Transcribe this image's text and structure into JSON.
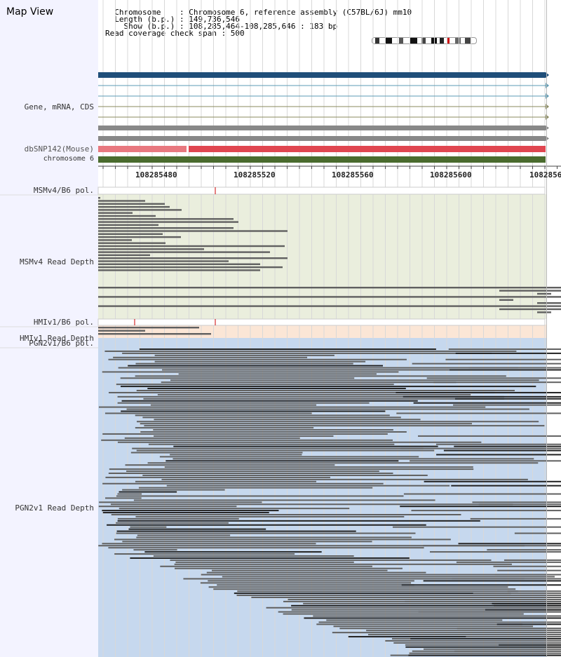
{
  "page_title": "Map View",
  "info": {
    "chromosome_line": "  Chromosome    : Chromosome 6, reference assembly (C57BL/6J) mm10",
    "length_line": "  Length (b.p.) : 149,736,546",
    "show_line": "    Show (b.p.) : 108,285,464-108,285,646 : 183 bp",
    "coverage_line": "Read coverage check span : 500"
  },
  "tracks": {
    "gene": "Gene, mRNA, CDS",
    "dbsnp": "dbSNP142(Mouse)",
    "chromosome": "chromosome 6",
    "msm_pol": "MSMv4/B6 pol.",
    "msm_depth": "MSMv4 Read Depth",
    "hmi_pol": "HMIv1/B6 pol.",
    "hmi_depth": "HMIv1 Read Depth",
    "pgn_pol": "PGN2v1/B6 pol.",
    "pgn_depth": "PGN2v1 Read Depth"
  },
  "axis_ticks": [
    "108285480",
    "108285520",
    "108285560",
    "108285600",
    "1082856"
  ],
  "colors": {
    "gene_main": "#1f4e79",
    "gene_thin": "#5b9bb5",
    "gene_olive": "#8a8a5c",
    "gray_bar": "#888888",
    "snp_light": "#e8787f",
    "snp_dark": "#e04650",
    "chromosome": "#4a6b2e",
    "msm_bg": "#eaeedd",
    "hmi_bg": "#fbe6d6",
    "pgn_bg": "#c6d8ee",
    "read": "#606060",
    "read_dark": "#222222"
  }
}
